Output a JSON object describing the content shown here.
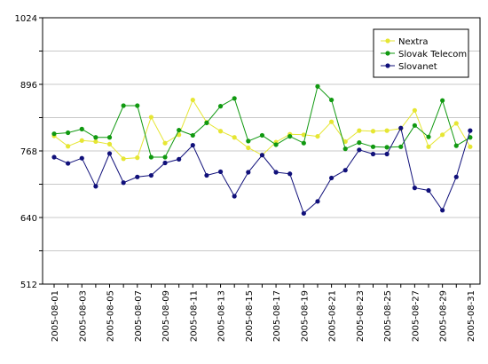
{
  "chart_data": {
    "type": "line",
    "title": "",
    "xlabel": "",
    "ylabel": "",
    "ylim": [
      512,
      1024
    ],
    "y_ticks": [
      512,
      640,
      768,
      896,
      1024
    ],
    "grid": true,
    "legend_position": "top-right",
    "x": [
      "2005-08-01",
      "2005-08-02",
      "2005-08-03",
      "2005-08-04",
      "2005-08-05",
      "2005-08-06",
      "2005-08-07",
      "2005-08-08",
      "2005-08-09",
      "2005-08-10",
      "2005-08-11",
      "2005-08-12",
      "2005-08-13",
      "2005-08-14",
      "2005-08-15",
      "2005-08-16",
      "2005-08-17",
      "2005-08-18",
      "2005-08-19",
      "2005-08-20",
      "2005-08-21",
      "2005-08-22",
      "2005-08-23",
      "2005-08-24",
      "2005-08-25",
      "2005-08-26",
      "2005-08-27",
      "2005-08-28",
      "2005-08-29",
      "2005-08-30",
      "2005-08-31"
    ],
    "x_tick_labels": [
      "2005-08-01",
      "2005-08-03",
      "2005-08-05",
      "2005-08-07",
      "2005-08-09",
      "2005-08-11",
      "2005-08-13",
      "2005-08-15",
      "2005-08-17",
      "2005-08-19",
      "2005-08-21",
      "2005-08-23",
      "2005-08-25",
      "2005-08-27",
      "2005-08-29",
      "2005-08-31"
    ],
    "series": [
      {
        "name": "Nextra",
        "color": "#e6e633",
        "values": [
          797,
          777,
          788,
          786,
          781,
          753,
          755,
          833,
          783,
          799,
          866,
          823,
          806,
          794,
          774,
          760,
          785,
          800,
          799,
          796,
          824,
          786,
          807,
          806,
          807,
          811,
          846,
          776,
          799,
          821,
          776
        ]
      },
      {
        "name": "Slovak Telecom",
        "color": "#109910",
        "values": [
          801,
          803,
          810,
          794,
          794,
          855,
          855,
          756,
          756,
          808,
          798,
          822,
          854,
          869,
          787,
          798,
          780,
          796,
          783,
          892,
          866,
          772,
          784,
          776,
          775,
          776,
          817,
          795,
          865,
          778,
          794
        ]
      },
      {
        "name": "Slovanet",
        "color": "#10107a",
        "values": [
          756,
          744,
          754,
          700,
          763,
          707,
          718,
          721,
          745,
          752,
          779,
          721,
          728,
          681,
          727,
          760,
          727,
          724,
          648,
          671,
          716,
          731,
          770,
          762,
          762,
          812,
          697,
          692,
          654,
          718,
          807
        ]
      }
    ]
  }
}
